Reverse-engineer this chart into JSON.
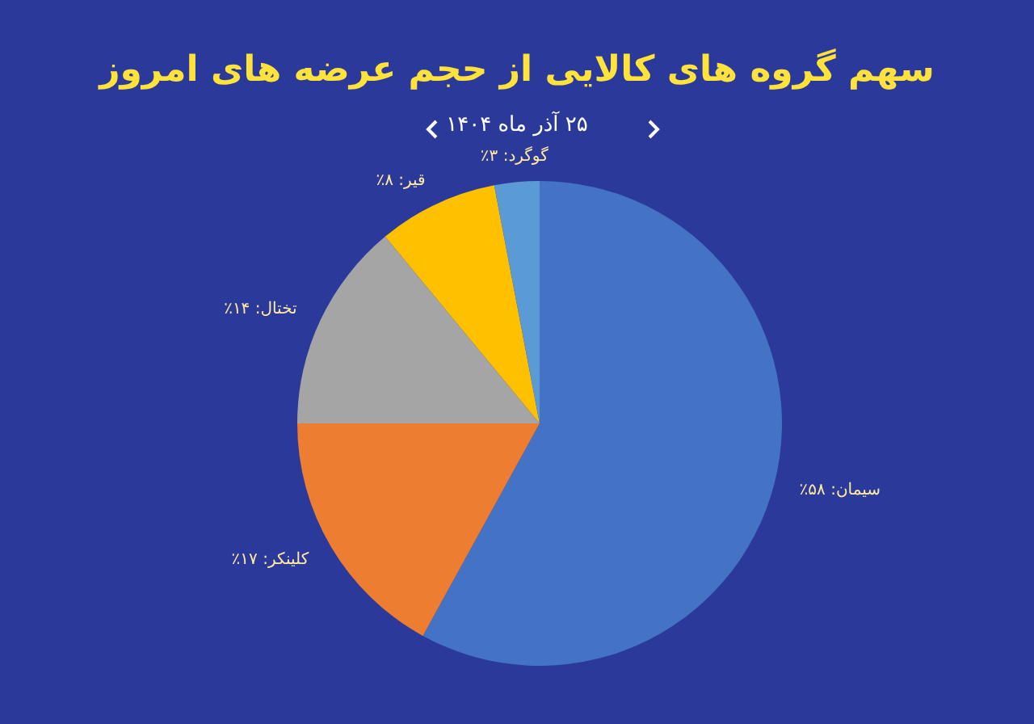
{
  "chart_data": {
    "type": "pie",
    "title": "سهم گروه های کالایی از حجم عرضه های امروز",
    "subtitle": "۲۵ آذر ماه ۱۴۰۴",
    "categories": [
      "سیمان",
      "کلینکر",
      "تختال",
      "قیر",
      "گوگرد"
    ],
    "values": [
      58,
      17,
      14,
      8,
      3
    ],
    "value_labels": [
      "۵۸٪",
      "۱۷٪",
      "۱۴٪",
      "۸٪",
      "۳٪"
    ],
    "colors": [
      "#4472c4",
      "#ed7d31",
      "#a5a5a5",
      "#ffc000",
      "#5b9bd5"
    ]
  }
}
